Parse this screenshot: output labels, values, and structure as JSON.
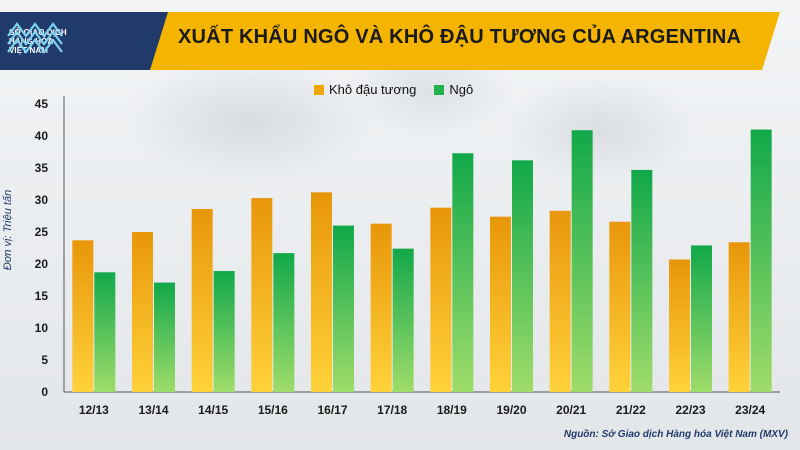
{
  "header": {
    "title": "XUẤT KHẨU NGÔ VÀ KHÔ ĐẬU TƯƠNG CỦA ARGENTINA",
    "logo_lines": [
      "SỞ GIAO DỊCH",
      "HÀNG HÓA",
      "VIỆT NAM"
    ],
    "bar_color": "#f4b400",
    "logo_bg_color": "#1f3a6b"
  },
  "footer": {
    "source": "Nguồn: Sở Giao dịch Hàng hóa Việt Nam (MXV)"
  },
  "chart_data": {
    "type": "bar",
    "title": "XUẤT KHẨU NGÔ VÀ KHÔ ĐẬU TƯƠNG CỦA ARGENTINA",
    "xlabel": "",
    "ylabel": "Đơn vị: Triệu tấn",
    "ylim": [
      0,
      45
    ],
    "yticks": [
      0,
      5,
      10,
      15,
      20,
      25,
      30,
      35,
      40,
      45
    ],
    "grid": false,
    "legend_position": "top-center",
    "categories": [
      "12/13",
      "13/14",
      "14/15",
      "15/16",
      "16/17",
      "17/18",
      "18/19",
      "19/20",
      "20/21",
      "21/22",
      "22/23",
      "23/24"
    ],
    "series": [
      {
        "name": "Khô đậu tương",
        "color": "#f0a500",
        "values": [
          23.7,
          25.0,
          28.6,
          30.3,
          31.2,
          26.3,
          28.8,
          27.4,
          28.3,
          26.6,
          20.7,
          23.4
        ]
      },
      {
        "name": "Ngô",
        "color": "#22b04b",
        "values": [
          18.7,
          17.1,
          18.9,
          21.7,
          26.0,
          22.4,
          37.3,
          36.2,
          40.9,
          34.7,
          22.9,
          41.0
        ]
      }
    ]
  }
}
